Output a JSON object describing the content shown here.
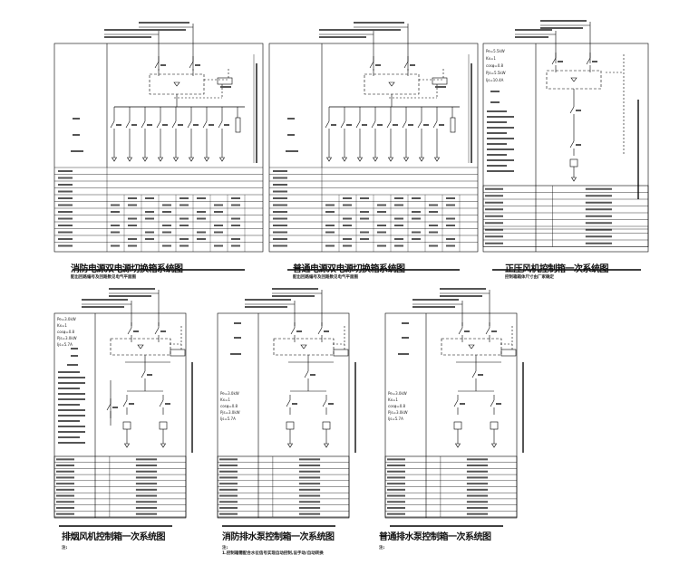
{
  "panels": [
    {
      "id": "p1",
      "title": "消防电源双电源切换箱系统图",
      "note": "配出回路编号及回路数见电气平面图",
      "type": "distribution",
      "outgoing": 8
    },
    {
      "id": "p2",
      "title": "普通电源双电源切换箱系统图",
      "note": "配出回路编号及回路数见电气平面图",
      "type": "distribution",
      "outgoing": 8
    },
    {
      "id": "p3",
      "title": "正压风机控制箱一次系统图",
      "note": "控制箱箱体尺寸由厂家确定",
      "type": "single-motor",
      "params": [
        "Pe=5.5kW",
        "Kx=1",
        "cosφ=0.8",
        "Pjs=5.5kW",
        "Ijs=10.4A"
      ]
    },
    {
      "id": "p4",
      "title": "排烟风机控制箱一次系统图",
      "note": "注:",
      "type": "dual-motor",
      "params": [
        "Pe=3.0kW",
        "Kx=1",
        "cosφ=0.8",
        "Pjs=3.0kW",
        "Ijs=5.7A"
      ]
    },
    {
      "id": "p5",
      "title": "消防排水泵控制箱一次系统图",
      "note": "注:",
      "note2": "1.控制箱需配合水位信号实现自动控制,设手动/自动转换",
      "type": "pump",
      "params": [
        "Pe=3.0kW",
        "Kx=1",
        "cosφ=0.8",
        "Pjs=3.0kW",
        "Ijs=5.7A"
      ]
    },
    {
      "id": "p6",
      "title": "普通排水泵控制箱一次系统图",
      "note": "注:",
      "type": "pump",
      "params": [
        "Pe=3.0kW",
        "Kx=1",
        "cosφ=0.8",
        "Pjs=3.0kW",
        "Ijs=5.7A"
      ]
    }
  ]
}
